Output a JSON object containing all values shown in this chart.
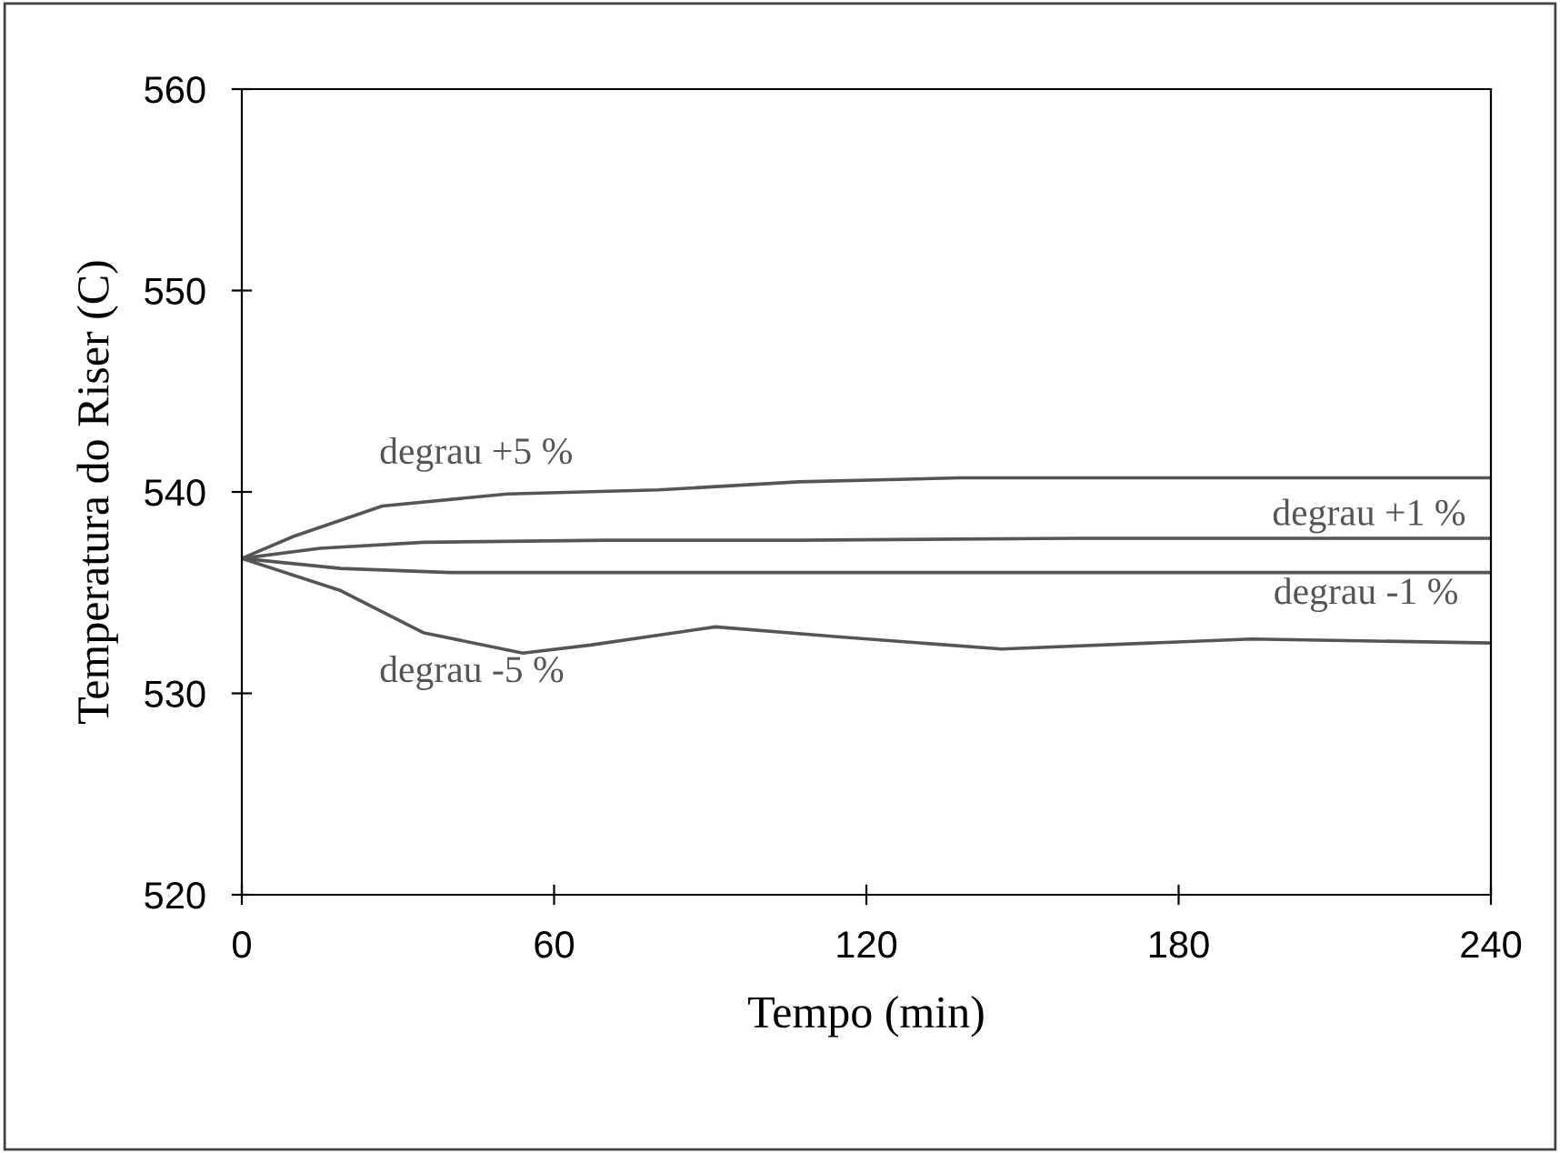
{
  "chart_data": {
    "type": "line",
    "xlabel": "Tempo (min)",
    "ylabel": "Temperatura do Riser (C)",
    "xlim": [
      0,
      240
    ],
    "xticks": [
      0,
      60,
      120,
      180,
      240
    ],
    "ylim": [
      520,
      560
    ],
    "yticks": [
      520,
      530,
      540,
      550,
      560
    ],
    "grid": false,
    "legend": false,
    "marker": "none",
    "line_style": "solid",
    "series": [
      {
        "name": "degrau +5 %",
        "color": "#555555",
        "x": [
          0,
          10,
          27,
          51,
          80,
          107,
          138,
          180,
          240
        ],
        "values": [
          536.7,
          537.8,
          539.3,
          539.9,
          540.1,
          540.5,
          540.7,
          540.7,
          540.7
        ]
      },
      {
        "name": "degrau +1 %",
        "color": "#555555",
        "x": [
          0,
          15,
          35,
          70,
          107,
          160,
          240
        ],
        "values": [
          536.7,
          537.2,
          537.5,
          537.6,
          537.6,
          537.7,
          537.7
        ]
      },
      {
        "name": "degrau -1 %",
        "color": "#555555",
        "x": [
          0,
          19,
          40,
          60,
          120,
          180,
          240
        ],
        "values": [
          536.7,
          536.2,
          536.0,
          536.0,
          536.0,
          536.0,
          536.0
        ]
      },
      {
        "name": "degrau -5 %",
        "color": "#555555",
        "x": [
          0,
          19,
          35,
          54,
          67,
          91,
          115,
          146,
          194,
          240
        ],
        "values": [
          536.7,
          535.1,
          533.0,
          532.0,
          532.4,
          533.3,
          532.8,
          532.2,
          532.7,
          532.5
        ]
      }
    ]
  }
}
